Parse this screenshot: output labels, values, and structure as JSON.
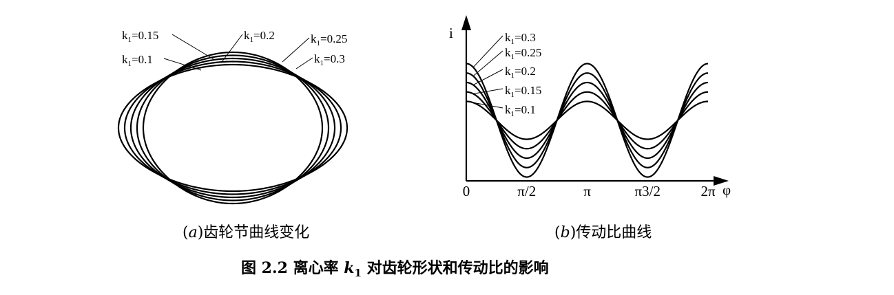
{
  "chart_data": [
    {
      "type": "line",
      "panel": "a",
      "caption_prefix": "(",
      "caption_letter": "a",
      "caption_text": ")齿轮节曲线变化",
      "series": [
        {
          "name": "k1=0.1",
          "k_text": "k",
          "k_sub": "1",
          "k_value": "=0.1",
          "k": 0.1
        },
        {
          "name": "k1=0.15",
          "k_text": "k",
          "k_sub": "1",
          "k_value": "=0.15",
          "k": 0.15
        },
        {
          "name": "k1=0.2",
          "k_text": "k",
          "k_sub": "1",
          "k_value": "=0.2",
          "k": 0.2
        },
        {
          "name": "k1=0.25",
          "k_text": "k",
          "k_sub": "1",
          "k_value": "=0.25",
          "k": 0.25
        },
        {
          "name": "k1=0.3",
          "k_text": "k",
          "k_sub": "1",
          "k_value": "=0.3",
          "k": 0.3
        }
      ]
    },
    {
      "type": "line",
      "panel": "b",
      "caption_prefix": "(",
      "caption_letter": "b",
      "caption_text": ")传动比曲线",
      "ylabel": "i",
      "xlabel": "φ",
      "x_ticks": [
        "0",
        "π/2",
        "π",
        "π3/2",
        "2π"
      ],
      "x_range": [
        0,
        6.2832
      ],
      "series": [
        {
          "name": "k1=0.3",
          "k_text": "k",
          "k_sub": "1",
          "k_value": "=0.3",
          "k": 0.3
        },
        {
          "name": "k1=0.25",
          "k_text": "k",
          "k_sub": "1",
          "k_value": "=0.25",
          "k": 0.25
        },
        {
          "name": "k1=0.2",
          "k_text": "k",
          "k_sub": "1",
          "k_value": "=0.2",
          "k": 0.2
        },
        {
          "name": "k1=0.15",
          "k_text": "k",
          "k_sub": "1",
          "k_value": "=0.15",
          "k": 0.15
        },
        {
          "name": "k1=0.1",
          "k_text": "k",
          "k_sub": "1",
          "k_value": "=0.1",
          "k": 0.1
        }
      ]
    }
  ],
  "figure_title": {
    "prefix": "图 2.2  离心率 ",
    "k_symbol": "k",
    "k_sub": "1",
    "suffix": " 对齿轮形状和传动比的影响"
  }
}
